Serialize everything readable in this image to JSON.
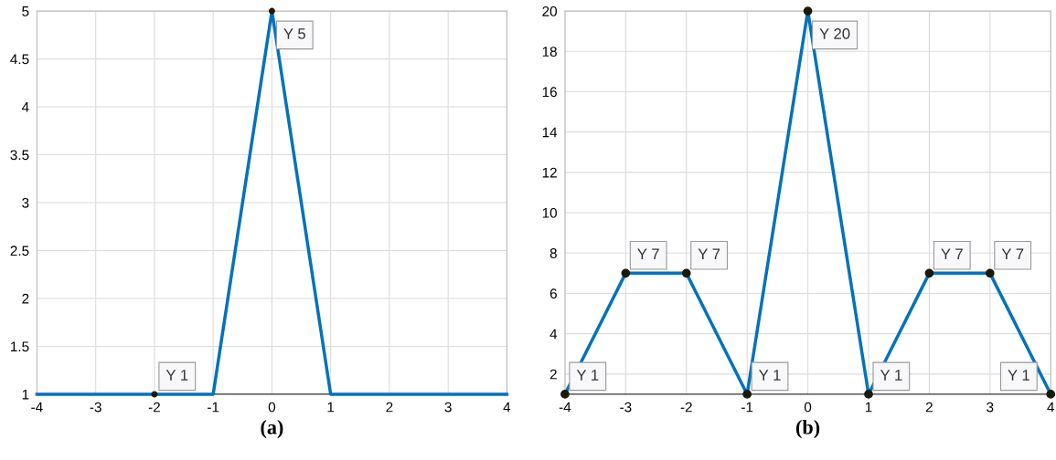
{
  "chart_data": [
    {
      "type": "line",
      "xlabel": "(a)",
      "x": [
        -4,
        -1,
        0,
        1,
        4
      ],
      "series": [
        {
          "color": "#0072bd",
          "values": [
            1,
            1,
            5,
            1,
            1
          ]
        }
      ],
      "xlim": [
        -4,
        4
      ],
      "xticks": [
        -4,
        -3,
        -2,
        -1,
        0,
        1,
        2,
        3,
        4
      ],
      "ylim": [
        1,
        5
      ],
      "yticks": [
        1,
        1.5,
        2,
        2.5,
        3,
        3.5,
        4,
        4.5,
        5
      ],
      "grid": true,
      "annotations": [
        {
          "text": "Y 1",
          "x": -2,
          "y": 1
        },
        {
          "text": "Y 5",
          "x": 0,
          "y": 5
        }
      ]
    },
    {
      "type": "line",
      "xlabel": "(b)",
      "x": [
        -4,
        -3,
        -2,
        -1,
        0,
        1,
        2,
        3,
        4
      ],
      "series": [
        {
          "color": "#0072bd",
          "marker": "circle",
          "values": [
            1,
            7,
            7,
            1,
            20,
            1,
            7,
            7,
            1
          ]
        }
      ],
      "xlim": [
        -4,
        4
      ],
      "xticks": [
        -4,
        -3,
        -2,
        -1,
        0,
        1,
        2,
        3,
        4
      ],
      "ylim": [
        1,
        20
      ],
      "yticks": [
        2,
        4,
        6,
        8,
        10,
        12,
        14,
        16,
        18,
        20
      ],
      "grid": true,
      "annotations": [
        {
          "text": "Y 1",
          "x": -4,
          "y": 1
        },
        {
          "text": "Y 7",
          "x": -3,
          "y": 7
        },
        {
          "text": "Y 7",
          "x": -2,
          "y": 7
        },
        {
          "text": "Y 1",
          "x": -1,
          "y": 1
        },
        {
          "text": "Y 20",
          "x": 0,
          "y": 20
        },
        {
          "text": "Y 1",
          "x": 1,
          "y": 1
        },
        {
          "text": "Y 7",
          "x": 2,
          "y": 7
        },
        {
          "text": "Y 7",
          "x": 3,
          "y": 7
        },
        {
          "text": "Y 1",
          "x": 4,
          "y": 1
        }
      ]
    }
  ]
}
